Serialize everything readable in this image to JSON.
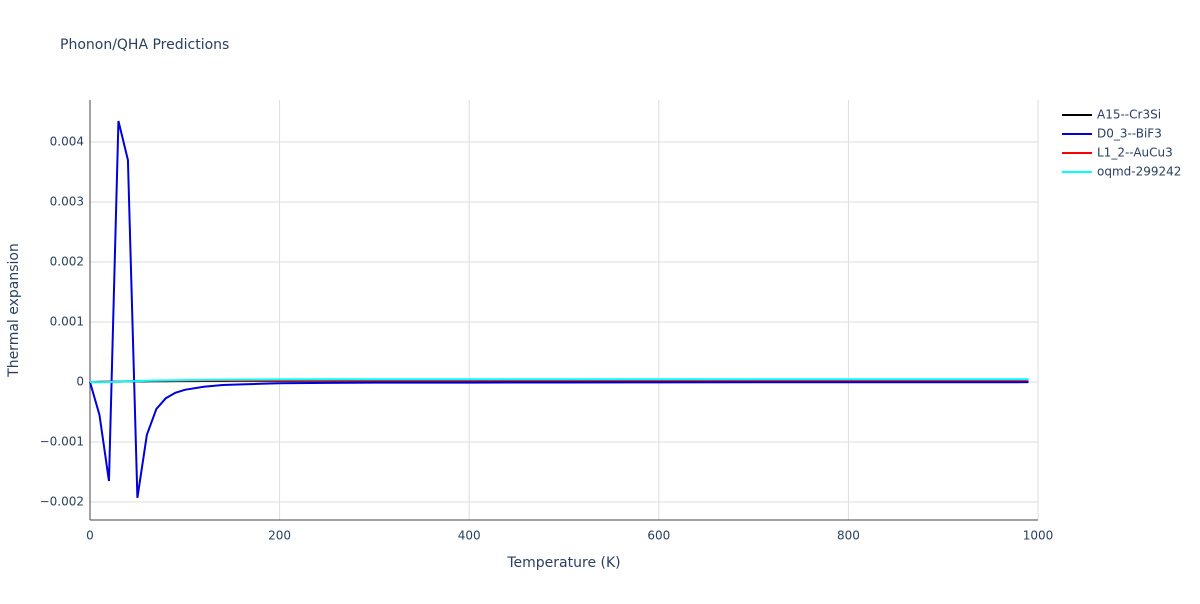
{
  "chart_data": {
    "type": "line",
    "title": "Phonon/QHA Predictions",
    "xlabel": "Temperature (K)",
    "ylabel": "Thermal expansion",
    "x": [
      0,
      10,
      20,
      30,
      40,
      50,
      60,
      70,
      80,
      90,
      100,
      120,
      140,
      160,
      180,
      200,
      250,
      300,
      400,
      500,
      600,
      700,
      800,
      900,
      990
    ],
    "series": [
      {
        "name": "A15--Cr3Si",
        "color": "#000000",
        "values": [
          0,
          2e-06,
          4e-06,
          6e-06,
          8e-06,
          1e-05,
          1.1e-05,
          1.2e-05,
          1.3e-05,
          1.4e-05,
          1.5e-05,
          1.6e-05,
          1.7e-05,
          1.8e-05,
          1.8e-05,
          1.9e-05,
          2e-05,
          2e-05,
          2e-05,
          2e-05,
          2e-05,
          2e-05,
          2e-05,
          2e-05,
          2e-05
        ]
      },
      {
        "name": "D0_3--BiF3",
        "color": "#0000dd",
        "values": [
          0,
          -0.00055,
          -0.00165,
          0.00435,
          0.0037,
          -0.00193,
          -0.00088,
          -0.00045,
          -0.00027,
          -0.00018,
          -0.00013,
          -8e-05,
          -5e-05,
          -4e-05,
          -3e-05,
          -2e-05,
          -1.5e-05,
          -1e-05,
          -1e-05,
          -8e-06,
          -6e-06,
          -5e-06,
          -4e-06,
          -4e-06,
          -3e-06
        ]
      },
      {
        "name": "L1_2--AuCu3",
        "color": "#ff0000",
        "values": [
          0,
          3e-06,
          6e-06,
          9e-06,
          1.2e-05,
          1.5e-05,
          1.7e-05,
          1.9e-05,
          2e-05,
          2.1e-05,
          2.2e-05,
          2.4e-05,
          2.5e-05,
          2.6e-05,
          2.7e-05,
          2.8e-05,
          2.9e-05,
          3e-05,
          3e-05,
          3e-05,
          3e-05,
          3e-05,
          3e-05,
          3e-05,
          3e-05
        ]
      },
      {
        "name": "oqmd-299242",
        "color": "#00ffff",
        "values": [
          0,
          -5e-06,
          0,
          5e-06,
          1e-05,
          1.5e-05,
          2e-05,
          2.4e-05,
          2.7e-05,
          3e-05,
          3.2e-05,
          3.5e-05,
          3.8e-05,
          4e-05,
          4.2e-05,
          4.4e-05,
          4.5e-05,
          4.6e-05,
          4.6e-05,
          4.6e-05,
          4.6e-05,
          4.6e-05,
          4.6e-05,
          4.6e-05,
          4.6e-05
        ]
      }
    ],
    "xlim": [
      0,
      1000
    ],
    "xticks": [
      0,
      200,
      400,
      600,
      800,
      1000
    ],
    "ylim": [
      -0.0023,
      0.0047
    ],
    "yticks": [
      {
        "value": -0.002,
        "label": "−0.002"
      },
      {
        "value": -0.001,
        "label": "−0.001"
      },
      0,
      0.001,
      0.002,
      0.003,
      0.004
    ],
    "grid": true,
    "legend": "right"
  }
}
